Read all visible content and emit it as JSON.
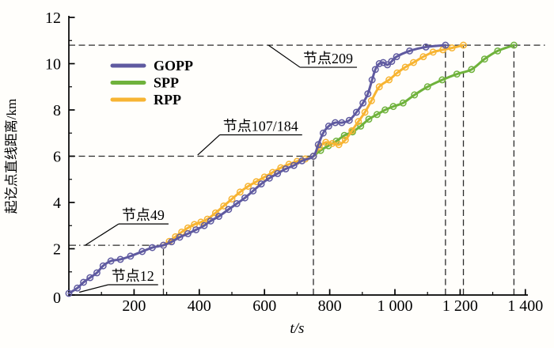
{
  "chart_data": {
    "type": "line",
    "title": "",
    "xlabel": "t/s",
    "ylabel": "起讫点直线距离/km",
    "xlim": [
      0,
      1400
    ],
    "ylim": [
      0,
      12
    ],
    "x_ticks": [
      0,
      200,
      400,
      600,
      800,
      1000,
      1200,
      1400
    ],
    "x_tick_labels": [
      "0",
      "200",
      "400",
      "600",
      "800",
      "1 000",
      "1 200",
      "1 400"
    ],
    "y_ticks": [
      0,
      2,
      4,
      6,
      8,
      10,
      12
    ],
    "y_tick_labels": [
      "0",
      "2",
      "4",
      "6",
      "8",
      "10",
      "12"
    ],
    "x_minor_tick_step": 100,
    "y_minor_tick_step": 1,
    "grid": false,
    "legend": {
      "position": "upper-left-inside",
      "entries": [
        "GOPP",
        "SPP",
        "RPP"
      ]
    },
    "series": [
      {
        "name": "GOPP",
        "color": "#5f5aa0",
        "z": 3,
        "points": [
          [
            0,
            0.07
          ],
          [
            26,
            0.3
          ],
          [
            45,
            0.55
          ],
          [
            65,
            0.75
          ],
          [
            86,
            0.96
          ],
          [
            105,
            1.26
          ],
          [
            129,
            1.47
          ],
          [
            158,
            1.54
          ],
          [
            189,
            1.68
          ],
          [
            225,
            1.88
          ],
          [
            256,
            2.05
          ],
          [
            290,
            2.15
          ],
          [
            315,
            2.3
          ],
          [
            340,
            2.5
          ],
          [
            365,
            2.65
          ],
          [
            390,
            2.82
          ],
          [
            415,
            3.0
          ],
          [
            435,
            3.2
          ],
          [
            460,
            3.4
          ],
          [
            490,
            3.7
          ],
          [
            515,
            3.95
          ],
          [
            540,
            4.2
          ],
          [
            565,
            4.5
          ],
          [
            590,
            4.8
          ],
          [
            615,
            5.05
          ],
          [
            640,
            5.25
          ],
          [
            665,
            5.45
          ],
          [
            690,
            5.6
          ],
          [
            715,
            5.8
          ],
          [
            750,
            6.0
          ],
          [
            765,
            6.5
          ],
          [
            780,
            7.0
          ],
          [
            797,
            7.3
          ],
          [
            817,
            7.45
          ],
          [
            837,
            7.45
          ],
          [
            860,
            7.55
          ],
          [
            882,
            7.9
          ],
          [
            902,
            8.3
          ],
          [
            917,
            8.7
          ],
          [
            930,
            9.3
          ],
          [
            940,
            9.75
          ],
          [
            952,
            10.0
          ],
          [
            964,
            10.05
          ],
          [
            977,
            9.95
          ],
          [
            990,
            10.1
          ],
          [
            1005,
            10.3
          ],
          [
            1045,
            10.55
          ],
          [
            1095,
            10.72
          ],
          [
            1155,
            10.8
          ]
        ]
      },
      {
        "name": "SPP",
        "color": "#6fb23c",
        "z": 1,
        "points": [
          [
            750,
            6.0
          ],
          [
            772,
            6.25
          ],
          [
            796,
            6.45
          ],
          [
            820,
            6.65
          ],
          [
            845,
            6.9
          ],
          [
            870,
            7.05
          ],
          [
            895,
            7.3
          ],
          [
            920,
            7.6
          ],
          [
            945,
            7.8
          ],
          [
            970,
            8.0
          ],
          [
            995,
            8.15
          ],
          [
            1025,
            8.3
          ],
          [
            1060,
            8.65
          ],
          [
            1100,
            9.0
          ],
          [
            1145,
            9.3
          ],
          [
            1190,
            9.55
          ],
          [
            1235,
            9.75
          ],
          [
            1275,
            10.2
          ],
          [
            1315,
            10.55
          ],
          [
            1365,
            10.8
          ]
        ]
      },
      {
        "name": "RPP",
        "color": "#f7b432",
        "z": 2,
        "points": [
          [
            290,
            2.15
          ],
          [
            308,
            2.32
          ],
          [
            327,
            2.52
          ],
          [
            346,
            2.72
          ],
          [
            365,
            2.9
          ],
          [
            385,
            3.05
          ],
          [
            405,
            3.15
          ],
          [
            425,
            3.28
          ],
          [
            450,
            3.55
          ],
          [
            475,
            3.85
          ],
          [
            500,
            4.15
          ],
          [
            525,
            4.45
          ],
          [
            550,
            4.7
          ],
          [
            575,
            4.9
          ],
          [
            600,
            5.1
          ],
          [
            625,
            5.3
          ],
          [
            650,
            5.5
          ],
          [
            675,
            5.65
          ],
          [
            700,
            5.78
          ],
          [
            725,
            5.88
          ],
          [
            750,
            6.0
          ],
          [
            768,
            6.4
          ],
          [
            788,
            6.6
          ],
          [
            808,
            6.55
          ],
          [
            828,
            6.5
          ],
          [
            848,
            6.7
          ],
          [
            868,
            7.1
          ],
          [
            888,
            7.5
          ],
          [
            908,
            7.9
          ],
          [
            928,
            8.4
          ],
          [
            952,
            9.0
          ],
          [
            982,
            9.3
          ],
          [
            1007,
            9.6
          ],
          [
            1032,
            9.85
          ],
          [
            1057,
            10.05
          ],
          [
            1087,
            10.3
          ],
          [
            1117,
            10.5
          ],
          [
            1147,
            10.6
          ],
          [
            1175,
            10.68
          ],
          [
            1210,
            10.8
          ]
        ]
      }
    ],
    "annotations": [
      {
        "id": "node-12",
        "label": "节点12",
        "anchor_t": 32,
        "anchor_km": 0.12,
        "text_t": 196,
        "text_km": 0.82
      },
      {
        "id": "node-49",
        "label": "节点49",
        "anchor_t": 50,
        "anchor_km": 2.15,
        "text_t": 228,
        "text_km": 3.45
      },
      {
        "id": "node-107-184",
        "label": "节点107/184",
        "anchor_t": 395,
        "anchor_km": 6.05,
        "text_t": 588,
        "text_km": 7.3
      },
      {
        "id": "node-209",
        "label": "节点209",
        "anchor_t": 612,
        "anchor_km": 10.8,
        "text_t": 795,
        "text_km": 10.22
      }
    ],
    "reference_lines": [
      {
        "orient": "h",
        "km": 2.15,
        "t_range": [
          0,
          290
        ],
        "style": "dashdot"
      },
      {
        "orient": "v",
        "t": 290,
        "km_range": [
          0,
          2.15
        ],
        "style": "dash"
      },
      {
        "orient": "h",
        "km": 6.0,
        "t_range": [
          0,
          750
        ],
        "style": "dash"
      },
      {
        "orient": "v",
        "t": 750,
        "km_range": [
          0,
          6.0
        ],
        "style": "dash"
      },
      {
        "orient": "h",
        "km": 10.8,
        "t_range": [
          0,
          1460
        ],
        "style": "dash"
      },
      {
        "orient": "v",
        "t": 1155,
        "km_range": [
          0,
          10.8
        ],
        "style": "dash"
      },
      {
        "orient": "v",
        "t": 1210,
        "km_range": [
          0,
          10.8
        ],
        "style": "dash"
      },
      {
        "orient": "v",
        "t": 1365,
        "km_range": [
          0,
          10.8
        ],
        "style": "dash"
      }
    ],
    "arrival_times": {
      "GOPP": 1155,
      "RPP": 1210,
      "SPP": 1365
    },
    "node_values": {
      "节点12": 0.1,
      "节点49": 2.15,
      "节点107/184": 6.0,
      "节点209": 10.8
    }
  },
  "colors": {
    "axis": "#000000",
    "dashed": "#2b2b2b",
    "background": "#fffefb"
  }
}
